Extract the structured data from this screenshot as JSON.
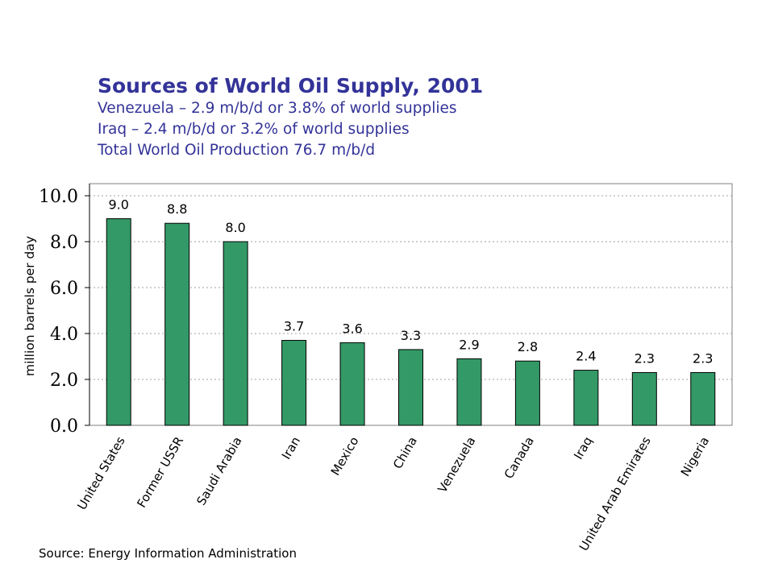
{
  "header": {
    "title": "Sources of World Oil Supply, 2001",
    "lines": [
      "Venezuela – 2.9 m/b/d or 3.8% of world supplies",
      "Iraq – 2.4 m/b/d or 3.2% of world supplies",
      "Total World Oil Production 76.7 m/b/d"
    ]
  },
  "footer": {
    "source": "Source: Energy Information Administration"
  },
  "chart_data": {
    "type": "bar",
    "title": "Sources of World Oil Supply, 2001",
    "xlabel": "",
    "ylabel": "million barrels per day",
    "ylim": [
      0,
      10
    ],
    "yticks": [
      0,
      2,
      4,
      6,
      8,
      10
    ],
    "ytick_labels": [
      "0.0",
      "2.0",
      "4.0",
      "6.0",
      "8.0",
      "10.0"
    ],
    "grid": true,
    "legend": "none",
    "bar_color": "#339966",
    "categories": [
      "United States",
      "Former USSR",
      "Saudi Arabia",
      "Iran",
      "Mexico",
      "China",
      "Venezuela",
      "Canada",
      "Iraq",
      "United Arab Emirates",
      "Nigeria"
    ],
    "values": [
      9.0,
      8.8,
      8.0,
      3.7,
      3.6,
      3.3,
      2.9,
      2.8,
      2.4,
      2.3,
      2.3
    ],
    "value_labels": [
      "9.0",
      "8.8",
      "8.0",
      "3.7",
      "3.6",
      "3.3",
      "2.9",
      "2.8",
      "2.4",
      "2.3",
      "2.3"
    ]
  }
}
